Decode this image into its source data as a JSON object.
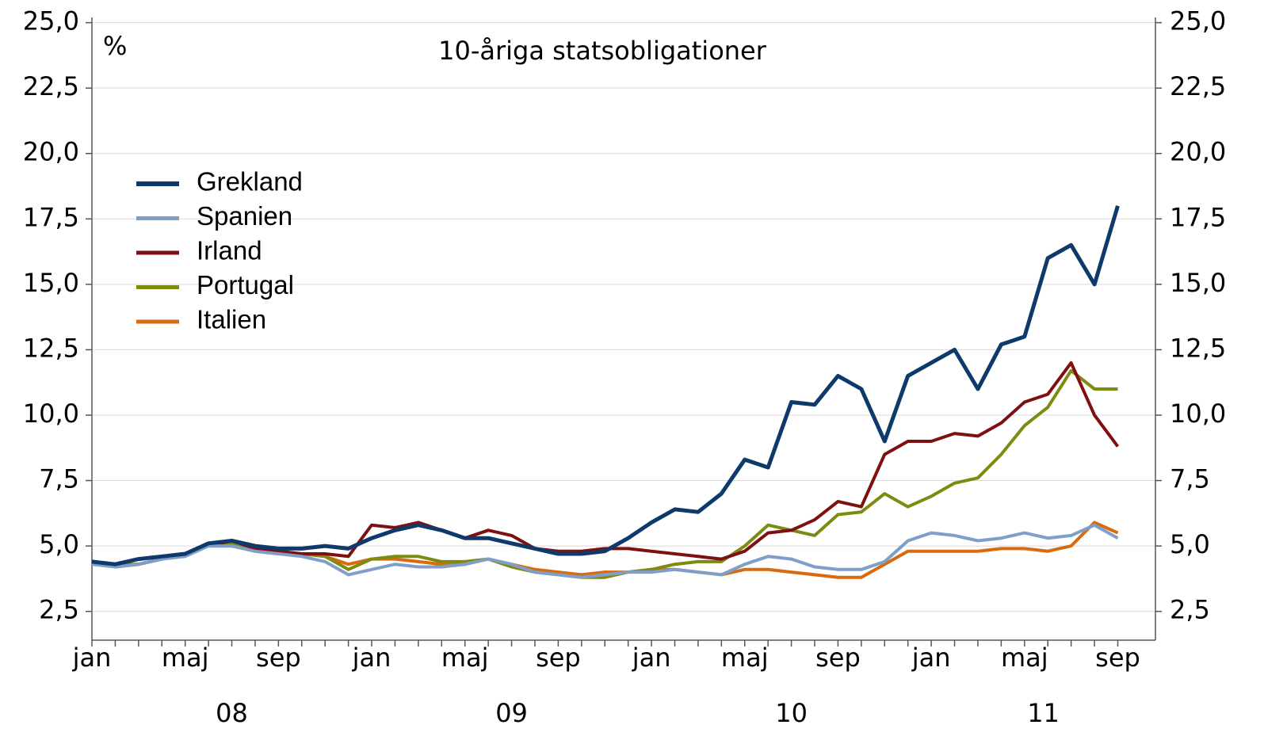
{
  "chart_data": {
    "type": "line",
    "title": "10-åriga statsobligationer",
    "y_unit": "%",
    "categories": [
      "jan",
      null,
      null,
      null,
      "maj",
      null,
      null,
      null,
      "sep",
      null,
      null,
      null,
      "jan",
      null,
      null,
      null,
      "maj",
      null,
      null,
      null,
      "sep",
      null,
      null,
      null,
      "jan",
      null,
      null,
      null,
      "maj",
      null,
      null,
      null,
      "sep",
      null,
      null,
      null,
      "jan",
      null,
      null,
      null,
      "maj",
      null,
      null,
      null,
      "sep"
    ],
    "years": [
      "08",
      "09",
      "10",
      "11"
    ],
    "series": [
      {
        "name": "Grekland",
        "color": "#0d3a6b",
        "values": [
          4.4,
          4.3,
          4.5,
          4.6,
          4.7,
          5.1,
          5.2,
          5.0,
          4.9,
          4.9,
          5.0,
          4.9,
          5.3,
          5.6,
          5.8,
          5.6,
          5.3,
          5.3,
          5.1,
          4.9,
          4.7,
          4.7,
          4.8,
          5.3,
          5.9,
          6.4,
          6.3,
          7.0,
          8.3,
          8.0,
          10.5,
          10.4,
          11.5,
          11.0,
          9.0,
          11.5,
          12.0,
          12.5,
          11.0,
          12.7,
          13.0,
          16.0,
          16.5,
          15.0,
          18.0
        ]
      },
      {
        "name": "Spanien",
        "color": "#7f9fc8",
        "values": [
          4.3,
          4.2,
          4.3,
          4.5,
          4.6,
          5.0,
          5.0,
          4.8,
          4.7,
          4.6,
          4.4,
          3.9,
          4.1,
          4.3,
          4.2,
          4.2,
          4.3,
          4.5,
          4.3,
          4.0,
          3.9,
          3.8,
          3.9,
          4.0,
          4.0,
          4.1,
          4.0,
          3.9,
          4.3,
          4.6,
          4.5,
          4.2,
          4.1,
          4.1,
          4.4,
          5.2,
          5.5,
          5.4,
          5.2,
          5.3,
          5.5,
          5.3,
          5.4,
          5.8,
          5.3
        ]
      },
      {
        "name": "Irland",
        "color": "#7f1010",
        "values": [
          4.4,
          4.2,
          4.3,
          4.5,
          4.7,
          5.0,
          5.2,
          4.9,
          4.8,
          4.7,
          4.7,
          4.6,
          5.8,
          5.7,
          5.9,
          5.6,
          5.3,
          5.6,
          5.4,
          4.9,
          4.8,
          4.8,
          4.9,
          4.9,
          4.8,
          4.7,
          4.6,
          4.5,
          4.8,
          5.5,
          5.6,
          6.0,
          6.7,
          6.5,
          8.5,
          9.0,
          9.0,
          9.3,
          9.2,
          9.7,
          10.5,
          10.8,
          12.0,
          10.0,
          8.8
        ]
      },
      {
        "name": "Portugal",
        "color": "#7f8a10",
        "values": [
          4.4,
          4.3,
          4.3,
          4.5,
          4.7,
          5.1,
          5.1,
          4.9,
          4.8,
          4.7,
          4.6,
          4.1,
          4.5,
          4.6,
          4.6,
          4.4,
          4.4,
          4.5,
          4.2,
          4.0,
          3.9,
          3.8,
          3.8,
          4.0,
          4.1,
          4.3,
          4.4,
          4.4,
          5.0,
          5.8,
          5.6,
          5.4,
          6.2,
          6.3,
          7.0,
          6.5,
          6.9,
          7.4,
          7.6,
          8.5,
          9.6,
          10.3,
          11.7,
          11.0,
          11.0
        ]
      },
      {
        "name": "Italien",
        "color": "#d86a10",
        "values": [
          4.4,
          4.3,
          4.3,
          4.5,
          4.7,
          5.0,
          5.0,
          4.8,
          4.7,
          4.7,
          4.6,
          4.3,
          4.5,
          4.5,
          4.4,
          4.3,
          4.3,
          4.5,
          4.3,
          4.1,
          4.0,
          3.9,
          4.0,
          4.0,
          4.1,
          4.1,
          4.0,
          3.9,
          4.1,
          4.1,
          4.0,
          3.9,
          3.8,
          3.8,
          4.3,
          4.8,
          4.8,
          4.8,
          4.8,
          4.9,
          4.9,
          4.8,
          5.0,
          5.9,
          5.5
        ]
      }
    ],
    "ylim": [
      1.4,
      25.2
    ],
    "yticks": [
      {
        "value": 2.5,
        "label": "2,5"
      },
      {
        "value": 5,
        "label": "5,0"
      },
      {
        "value": 7.5,
        "label": "7,5"
      },
      {
        "value": 10,
        "label": "10,0"
      },
      {
        "value": 12.5,
        "label": "12,5"
      },
      {
        "value": 15,
        "label": "15,0"
      },
      {
        "value": 17.5,
        "label": "17,5"
      },
      {
        "value": 20,
        "label": "20,0"
      },
      {
        "value": 22.5,
        "label": "22,5"
      },
      {
        "value": 25,
        "label": "25,0"
      }
    ],
    "grid": true,
    "legend": "upper left"
  }
}
